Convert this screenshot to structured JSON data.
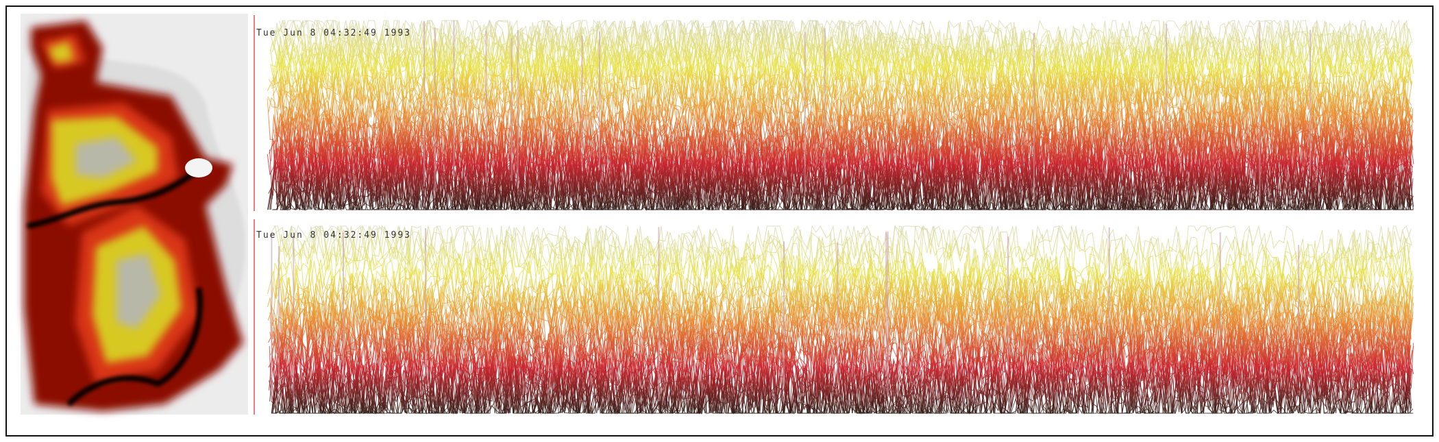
{
  "panels": [
    {
      "timestamp": "Tue  Jun   8  04:32:49  1993"
    },
    {
      "timestamp": "Tue  Jun   8  04:32:49  1993"
    }
  ]
}
